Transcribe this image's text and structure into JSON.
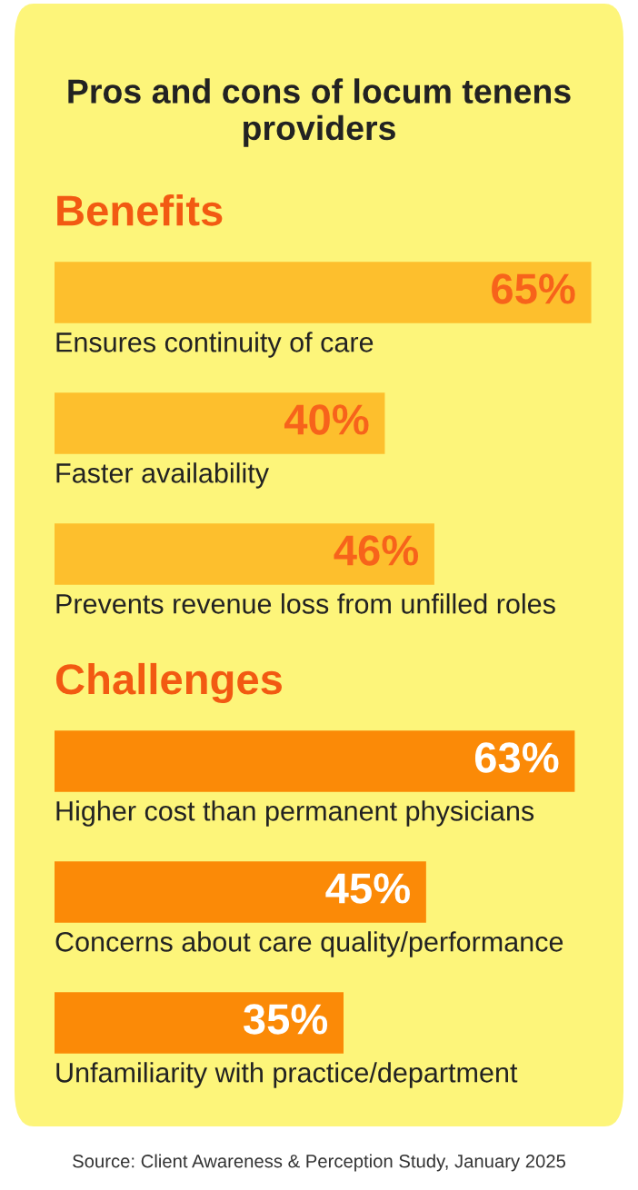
{
  "chart_data": [
    {
      "type": "bar",
      "orientation": "horizontal",
      "title": "Pros and cons of locum tenens providers",
      "subtitle": "Benefits",
      "categories": [
        "Ensures continuity of care",
        "Faster availability",
        "Prevents revenue loss from unfilled roles"
      ],
      "values": [
        65,
        40,
        46
      ],
      "value_labels": [
        "65%",
        "40%",
        "46%"
      ],
      "color": "#fdbf2d"
    },
    {
      "type": "bar",
      "orientation": "horizontal",
      "subtitle": "Challenges",
      "categories": [
        "Higher cost than permanent physicians",
        "Concerns about care quality/performance",
        "Unfamiliarity with practice/department"
      ],
      "values": [
        63,
        45,
        35
      ],
      "value_labels": [
        "63%",
        "45%",
        "35%"
      ],
      "color": "#fb8a07",
      "annotations": [
        "Source: Client Awareness & Perception Study, January 2025"
      ]
    }
  ]
}
